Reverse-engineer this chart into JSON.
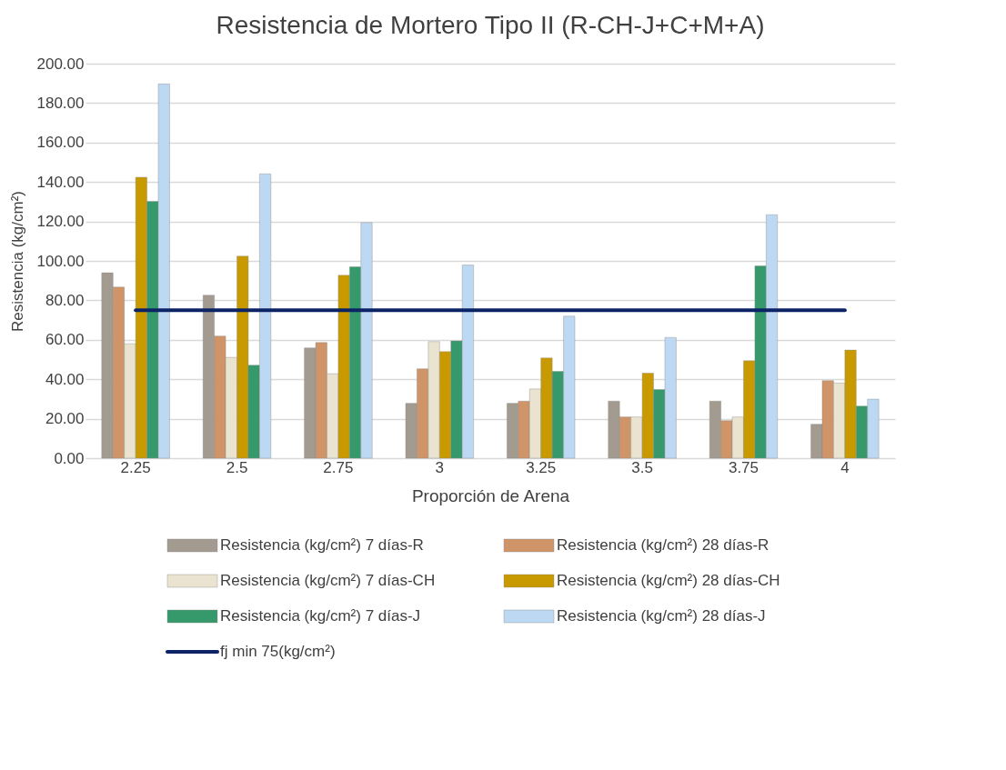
{
  "chart_data": {
    "type": "bar",
    "title": "Resistencia de Mortero Tipo II (R-CH-J+C+M+A)",
    "xlabel": "Proporción de Arena",
    "ylabel": "Resistencia (kg/cm²)",
    "categories": [
      "2.25",
      "2.5",
      "2.75",
      "3",
      "3.25",
      "3.5",
      "3.75",
      "4"
    ],
    "series": [
      {
        "name": "Resistencia (kg/cm²) 7 días-R",
        "color": "#a39b90",
        "values": [
          94.0,
          82.6,
          55.9,
          27.8,
          27.8,
          28.9,
          28.9,
          17.2
        ]
      },
      {
        "name": "Resistencia (kg/cm²) 28 días-R",
        "color": "#cf9468",
        "values": [
          86.7,
          61.9,
          58.6,
          45.3,
          28.9,
          20.9,
          19.0,
          39.3
        ]
      },
      {
        "name": "Resistencia (kg/cm²) 7 días-CH",
        "color": "#e9e3cf",
        "values": [
          58.0,
          51.1,
          42.8,
          59.1,
          35.1,
          20.9,
          20.9,
          38.1
        ]
      },
      {
        "name": "Resistencia (kg/cm²) 28 días-CH",
        "color": "#c89a00",
        "values": [
          142.4,
          102.4,
          92.7,
          54.0,
          50.8,
          43.1,
          49.4,
          54.8
        ]
      },
      {
        "name": "Resistencia (kg/cm²) 7 días-J",
        "color": "#36996b",
        "values": [
          130.2,
          47.1,
          97.0,
          59.4,
          44.0,
          34.8,
          97.5,
          26.4
        ]
      },
      {
        "name": "Resistencia (kg/cm²) 28 días-J",
        "color": "#bdd8f2",
        "values": [
          189.7,
          144.1,
          119.4,
          97.9,
          72.0,
          61.2,
          123.4,
          29.9
        ]
      },
      {
        "name": "fj min 75(kg/cm²)",
        "type": "line",
        "color": "#0c2466",
        "values": [
          75,
          75,
          75,
          75,
          75,
          75,
          75,
          75
        ]
      }
    ],
    "ylim": [
      0,
      200
    ],
    "yticks": [
      {
        "value": 0,
        "label": "0.00"
      },
      {
        "value": 20,
        "label": "20.00"
      },
      {
        "value": 40,
        "label": "40.00"
      },
      {
        "value": 60,
        "label": "60.00"
      },
      {
        "value": 80,
        "label": "80.00"
      },
      {
        "value": 100,
        "label": "100.00"
      },
      {
        "value": 120,
        "label": "120.00"
      },
      {
        "value": 140,
        "label": "140.00"
      },
      {
        "value": 160,
        "label": "160.00"
      },
      {
        "value": 180,
        "label": "180.00"
      },
      {
        "value": 200,
        "label": "200.00"
      }
    ],
    "grid": "y",
    "legend": "bottom"
  }
}
